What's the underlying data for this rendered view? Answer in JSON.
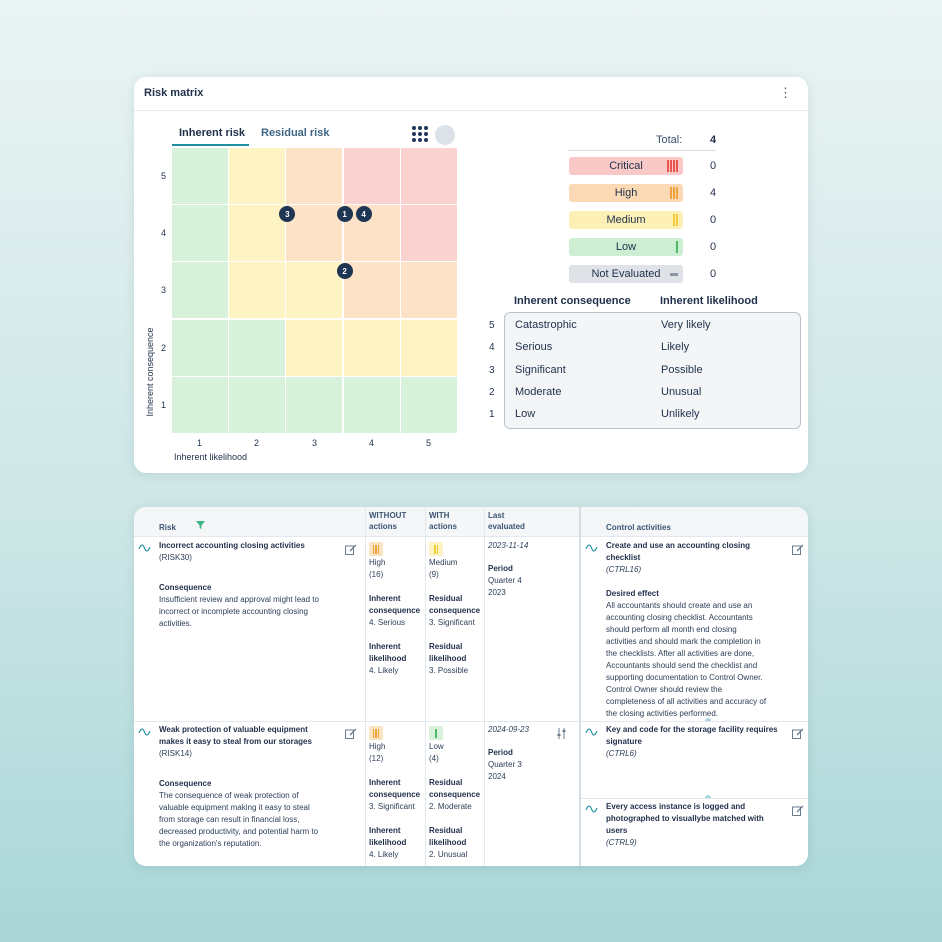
{
  "matrix_card": {
    "title": "Risk matrix",
    "tabs": [
      "Inherent risk",
      "Residual risk"
    ],
    "y_axis_label": "Inherent consequence",
    "x_axis_label": "Inherent likelihood",
    "y_ticks": [
      "5",
      "4",
      "3",
      "2",
      "1"
    ],
    "x_ticks": [
      "1",
      "2",
      "3",
      "4",
      "5"
    ],
    "markers": [
      {
        "label": "3",
        "likelihood": 3,
        "consequence": 4
      },
      {
        "label": "1",
        "likelihood": 4,
        "consequence": 4
      },
      {
        "label": "4",
        "likelihood": 4,
        "consequence": 4
      },
      {
        "label": "2",
        "likelihood": 4,
        "consequence": 3
      }
    ],
    "total_label": "Total:",
    "total_value": "4",
    "levels": [
      {
        "label": "Critical",
        "count": "0",
        "color": "#f8c9c6",
        "bar_color": "#e8564e"
      },
      {
        "label": "High",
        "count": "4",
        "color": "#fbd9b4",
        "bar_color": "#f0a23c"
      },
      {
        "label": "Medium",
        "count": "0",
        "color": "#fdf0b6",
        "bar_color": "#f5cd3a"
      },
      {
        "label": "Low",
        "count": "0",
        "color": "#cdeed2",
        "bar_color": "#4db966"
      },
      {
        "label": "Not Evaluated",
        "count": "0",
        "color": "#dfe3e8",
        "bar_color": "#8c97a5"
      }
    ],
    "legend": {
      "consequence_header": "Inherent consequence",
      "likelihood_header": "Inherent likelihood",
      "rows": [
        {
          "num": "5",
          "consequence": "Catastrophic",
          "likelihood": "Very likely"
        },
        {
          "num": "4",
          "consequence": "Serious",
          "likelihood": "Likely"
        },
        {
          "num": "3",
          "consequence": "Significant",
          "likelihood": "Possible"
        },
        {
          "num": "2",
          "consequence": "Moderate",
          "likelihood": "Unusual"
        },
        {
          "num": "1",
          "consequence": "Low",
          "likelihood": "Unlikely"
        }
      ]
    },
    "cell_colors": {
      "green": "#d8f1da",
      "yellow": "#fdf3c3",
      "orange": "#fce2c6",
      "red": "#fad3d0"
    }
  },
  "table_card": {
    "headers": {
      "risk": "Risk",
      "without_1": "WITHOUT",
      "without_2": "actions",
      "with_1": "WITH",
      "with_2": "actions",
      "last_1": "Last",
      "last_2": "evaluated",
      "controls": "Control activities"
    },
    "rows": [
      {
        "title_1": "Incorrect accounting closing activities",
        "id": "(RISK30)",
        "consequence_label": "Consequence",
        "consequence_lines": [
          "Insufficient review and approval might lead to",
          "incorrect or incomplete accounting closing",
          "activities."
        ],
        "without_level": "High",
        "without_score": "(16)",
        "with_level": "Medium",
        "with_score": "(9)",
        "inh_cons_1": "Inherent",
        "inh_cons_2": "consequence",
        "inh_cons_val": "4. Serious",
        "res_cons_1": "Residual",
        "res_cons_2": "consequence",
        "res_cons_val": "3. Significant",
        "inh_like_1": "Inherent",
        "inh_like_2": "likelihood",
        "inh_like_val": "4. Likely",
        "res_like_1": "Residual",
        "res_like_2": "likelihood",
        "res_like_val": "3. Possible",
        "date": "2023-11-14",
        "period_label": "Period",
        "period_1": "Quarter 4",
        "period_2": "2023"
      },
      {
        "title_1": "Weak protection of valuable equipment",
        "title_2": "makes it easy to steal from our storages",
        "id": "(RISK14)",
        "consequence_label": "Consequence",
        "consequence_lines": [
          "The consequence of weak protection of",
          "valuable equipment making it easy to steal",
          "from storage can result in financial loss,",
          "decreased productivity, and potential harm to",
          "the organization's reputation."
        ],
        "without_level": "High",
        "without_score": "(12)",
        "with_level": "Low",
        "with_score": "(4)",
        "inh_cons_1": "Inherent",
        "inh_cons_2": "consequence",
        "inh_cons_val": "3. Significant",
        "res_cons_1": "Residual",
        "res_cons_2": "consequence",
        "res_cons_val": "2. Moderate",
        "inh_like_1": "Inherent",
        "inh_like_2": "likelihood",
        "inh_like_val": "4. Likely",
        "res_like_1": "Residual",
        "res_like_2": "likelihood",
        "res_like_val": "2. Unusual",
        "date": "2024-09-23",
        "period_label": "Period",
        "period_1": "Quarter 3",
        "period_2": "2024"
      }
    ],
    "controls": [
      {
        "title_1": "Create and use an accounting closing",
        "title_2": "checklist",
        "id": "(CTRL16)",
        "effect_label": "Desired effect",
        "effect_lines": [
          "All accountants should create and use an",
          "accounting closing checklist. Accountants",
          "should perform all month end closing",
          "activities and should mark the completion in",
          "the checklists. After all activities are done,",
          "Accountants should send the checklist and",
          "supporting documentation to Control Owner.",
          "Control Owner should review the",
          "completeness of all activities and accuracy of",
          "the closing activities performed."
        ]
      },
      {
        "title_1": "Key and code for the storage facility requires",
        "title_2": "signature",
        "id": "(CTRL6)"
      },
      {
        "title_1": "Every access instance is logged and",
        "title_2": "photographed to visuallybe matched with",
        "title_3": "users",
        "id": "(CTRL9)"
      }
    ]
  }
}
